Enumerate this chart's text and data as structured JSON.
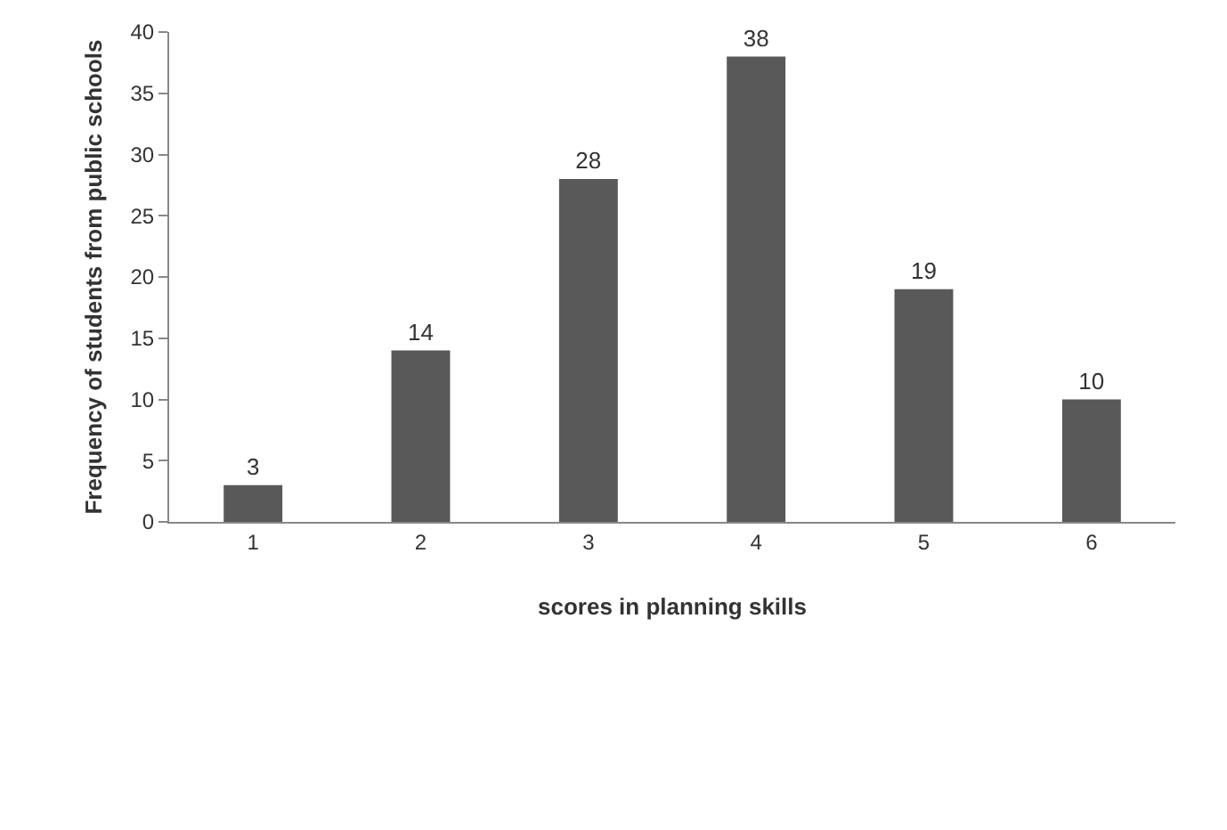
{
  "chart_data": {
    "type": "bar",
    "xlabel": "scores in planning skills",
    "ylabel": "Frequency of students from public schools",
    "categories": [
      "1",
      "2",
      "3",
      "4",
      "5",
      "6"
    ],
    "values": [
      3,
      14,
      28,
      38,
      19,
      10
    ],
    "color": "#595959",
    "ylim": [
      0,
      40
    ],
    "yticks": [
      0,
      5,
      10,
      15,
      20,
      25,
      30,
      35,
      40
    ],
    "data_labels": true
  }
}
